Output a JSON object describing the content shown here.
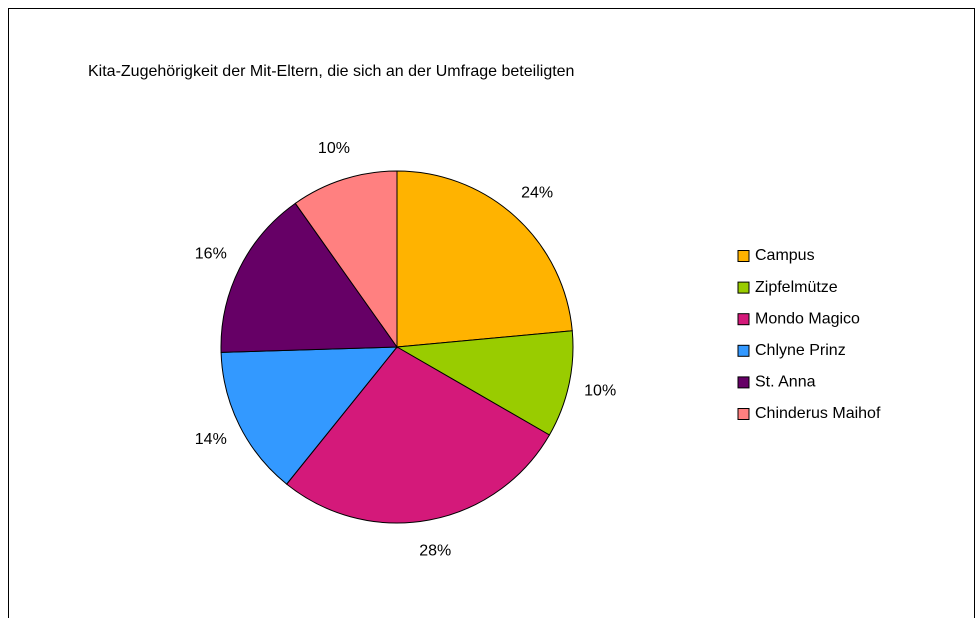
{
  "chart_data": {
    "type": "pie",
    "title": "Kita-Zugehörigkeit der Mit-Eltern, die sich an der Umfrage beteiligten",
    "categories": [
      "Campus",
      "Zipfelmütze",
      "Mondo Magico",
      "Chlyne Prinz",
      "St. Anna",
      "Chinderus Maihof"
    ],
    "values": [
      24,
      10,
      28,
      14,
      16,
      10
    ],
    "value_labels": [
      "24%",
      "10%",
      "28%",
      "14%",
      "16%",
      "10%"
    ],
    "colors": [
      "#ffb300",
      "#99cc00",
      "#d4197a",
      "#3399ff",
      "#660066",
      "#ff8080"
    ],
    "legend": "right"
  }
}
